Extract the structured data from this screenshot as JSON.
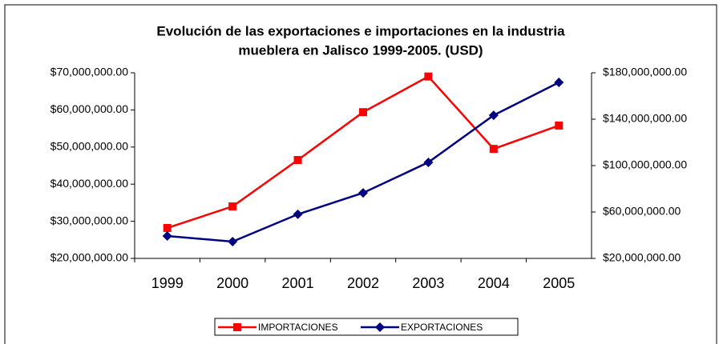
{
  "chart_data": {
    "type": "line",
    "title": [
      "Evolución de las exportaciones e importaciones en la industria",
      "mueblera en Jalisco 1999-2005. (USD)"
    ],
    "categories": [
      "1999",
      "2000",
      "2001",
      "2002",
      "2003",
      "2004",
      "2005"
    ],
    "series": [
      {
        "name": "IMPORTACIONES",
        "color": "#ff0000",
        "marker": "square",
        "values": [
          28200000,
          34000000,
          46500000,
          59400000,
          69000000,
          49500000,
          55800000
        ]
      },
      {
        "name": "EXPORTACIONES",
        "color": "#000080",
        "marker": "diamond",
        "axis": "y2",
        "values": [
          39300000,
          34500000,
          58000000,
          76500000,
          102800000,
          143400000,
          171700000
        ]
      }
    ],
    "ylim": [
      20000000,
      70000000
    ],
    "yticks": [
      {
        "value": 20000000,
        "label": "$20,000,000.00"
      },
      {
        "value": 30000000,
        "label": "$30,000,000.00"
      },
      {
        "value": 40000000,
        "label": "$40,000,000.00"
      },
      {
        "value": 50000000,
        "label": "$50,000,000.00"
      },
      {
        "value": 60000000,
        "label": "$60,000,000.00"
      },
      {
        "value": 70000000,
        "label": "$70,000,000.00"
      }
    ],
    "y2lim": [
      20000000,
      180000000
    ],
    "y2ticks": [
      {
        "value": 20000000,
        "label": "$20,000,000.00"
      },
      {
        "value": 60000000,
        "label": "$60,000,000.00"
      },
      {
        "value": 100000000,
        "label": "$100,000,000.00"
      },
      {
        "value": 140000000,
        "label": "$140,000,000.00"
      },
      {
        "value": 180000000,
        "label": "$180,000,000.00"
      }
    ],
    "grid": false,
    "legend": "bottom"
  }
}
